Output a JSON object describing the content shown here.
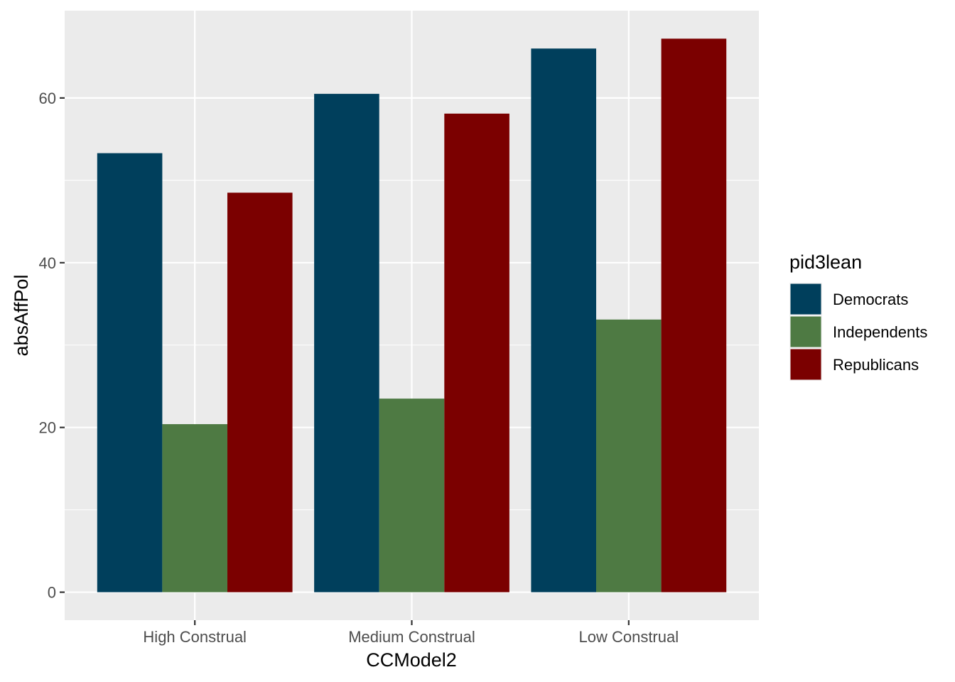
{
  "chart_data": {
    "type": "bar",
    "layout": "grouped",
    "categories": [
      "High Construal",
      "Medium Construal",
      "Low Construal"
    ],
    "series": [
      {
        "name": "Democrats",
        "color": "#003f5c",
        "values": [
          53.3,
          60.5,
          66.0
        ]
      },
      {
        "name": "Independents",
        "color": "#4e7a43",
        "values": [
          20.4,
          23.5,
          33.1
        ]
      },
      {
        "name": "Republicans",
        "color": "#7b0000",
        "values": [
          48.5,
          58.1,
          67.2
        ]
      }
    ],
    "xlabel": "CCModel2",
    "ylabel": "absAffPol",
    "ylim": [
      -3.4,
      70.6
    ],
    "yticks": [
      0,
      20,
      40,
      60
    ],
    "y_minor_ticks": [
      10,
      30,
      50
    ],
    "legend_title": "pid3lean",
    "legend_position": "right",
    "grid": true,
    "panel_background": "#ebebeb",
    "grid_color": "#ffffff"
  }
}
